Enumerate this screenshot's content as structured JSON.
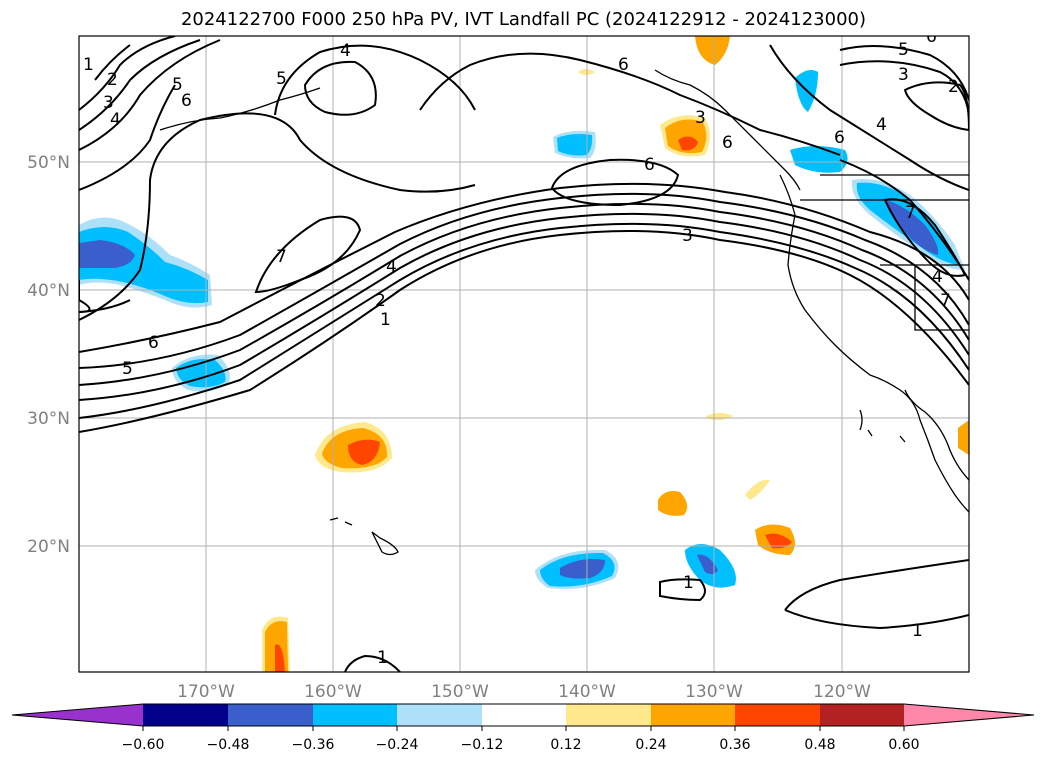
{
  "title": "2024122700 F000 250 hPa PV, IVT Landfall PC (2024122912 - 2024123000)",
  "map": {
    "lat_labels": [
      "50°N",
      "40°N",
      "30°N",
      "20°N"
    ],
    "lon_labels": [
      "170°W",
      "160°W",
      "150°W",
      "140°W",
      "130°W",
      "120°W"
    ],
    "label_color": "#808080",
    "contour_labels": [
      "1",
      "2",
      "3",
      "4",
      "5",
      "6",
      "4",
      "5",
      "6",
      "6",
      "6",
      "3",
      "6",
      "6",
      "5",
      "4",
      "3",
      "2",
      "7",
      "4",
      "2",
      "1",
      "6",
      "5",
      "3",
      "4",
      "7",
      "7",
      "1",
      "1",
      "1"
    ]
  },
  "colorbar": {
    "ticks": [
      "−0.60",
      "−0.48",
      "−0.36",
      "−0.24",
      "−0.12",
      "0.12",
      "0.24",
      "0.36",
      "0.48",
      "0.60"
    ],
    "colors": [
      "#9932cc",
      "#00008b",
      "#3a5fcd",
      "#00bfff",
      "#afe0fa",
      "#ffffff",
      "#ffe98c",
      "#ffa500",
      "#ff4500",
      "#b22222",
      "#ff88aa"
    ]
  }
}
